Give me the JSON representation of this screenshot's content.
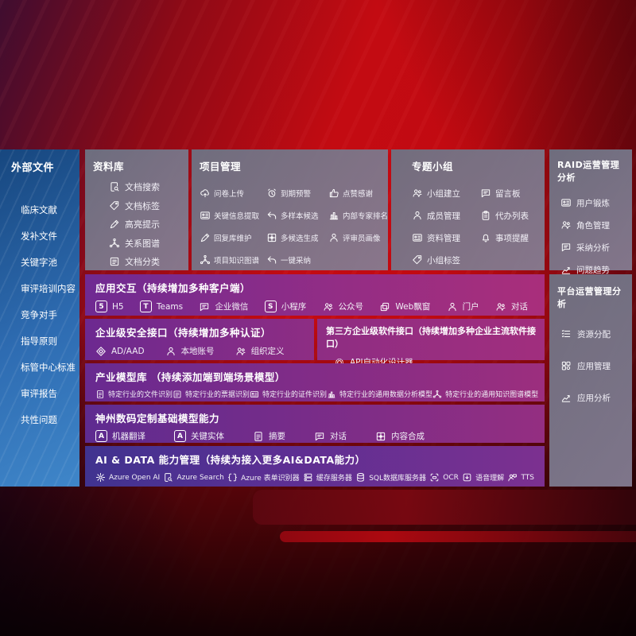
{
  "colors": {
    "background_red": "#c30b12",
    "sidebar_blue_top": "#17477f",
    "sidebar_blue_bottom": "#3f86c9",
    "panel_gray": "#767e92",
    "purple_left": "#6e2a91",
    "magenta_right": "#a62e7c",
    "indigo_left": "#403390",
    "text": "#ffffff"
  },
  "sidebar": {
    "title": "外部文件",
    "items": [
      "临床文献",
      "发补文件",
      "关键字池",
      "审评培训内容",
      "竞争对手",
      "指导原则",
      "标管中心标准",
      "审评报告",
      "共性问题"
    ]
  },
  "panels": {
    "library": {
      "title": "资料库",
      "items": [
        {
          "label": "文档搜索",
          "icon": "doc-search"
        },
        {
          "label": "文档标签",
          "icon": "doc-tag"
        },
        {
          "label": "高亮提示",
          "icon": "highlight"
        },
        {
          "label": "关系图谱",
          "icon": "relation-graph"
        },
        {
          "label": "文档分类",
          "icon": "doc-classify"
        }
      ]
    },
    "project": {
      "title": "项目管理",
      "items": [
        {
          "label": "问卷上传",
          "icon": "upload-cloud"
        },
        {
          "label": "到期预警",
          "icon": "alarm"
        },
        {
          "label": "点赞感谢",
          "icon": "thumbs-up"
        },
        {
          "label": "关键信息提取",
          "icon": "info-extract"
        },
        {
          "label": "多样本候选",
          "icon": "multi-sample"
        },
        {
          "label": "内部专家排名",
          "icon": "expert-rank"
        },
        {
          "label": "回复库维护",
          "icon": "reply-maintain"
        },
        {
          "label": "多候选生成",
          "icon": "multi-generate"
        },
        {
          "label": "评审员画像",
          "icon": "reviewer-portrait"
        },
        {
          "label": "项目知识图谱",
          "icon": "knowledge-graph"
        },
        {
          "label": "一键采纳",
          "icon": "one-click-adopt"
        }
      ]
    },
    "group": {
      "title": "专题小组",
      "items": [
        {
          "label": "小组建立",
          "icon": "group-create"
        },
        {
          "label": "留言板",
          "icon": "message-board"
        },
        {
          "label": "成员管理",
          "icon": "member-manage"
        },
        {
          "label": "代办列表",
          "icon": "todo-list"
        },
        {
          "label": "资料管理",
          "icon": "material-manage"
        },
        {
          "label": "事项提醒",
          "icon": "reminder"
        },
        {
          "label": "小组标签",
          "icon": "group-tag"
        }
      ]
    },
    "raid": {
      "title": "RAID运营管理分析",
      "items": [
        {
          "label": "用户锻炼",
          "icon": "user-card"
        },
        {
          "label": "角色管理",
          "icon": "role-manage"
        },
        {
          "label": "采纳分析",
          "icon": "adopt-analysis"
        },
        {
          "label": "问题趋势",
          "icon": "issue-trend"
        }
      ]
    },
    "platform": {
      "title": "平台运营管理分析",
      "items": [
        {
          "label": "资源分配",
          "icon": "resource-alloc"
        },
        {
          "label": "应用管理",
          "icon": "app-manage"
        },
        {
          "label": "应用分析",
          "icon": "app-analysis"
        }
      ]
    },
    "interaction": {
      "title": "应用交互（持续增加多种客户端）",
      "items": [
        {
          "label": "H5",
          "icon": "h5"
        },
        {
          "label": "Teams",
          "icon": "teams"
        },
        {
          "label": "企业微信",
          "icon": "wechat-work"
        },
        {
          "label": "小程序",
          "icon": "mini-program"
        },
        {
          "label": "公众号",
          "icon": "official-account"
        },
        {
          "label": "Web飘窗",
          "icon": "web-popup"
        },
        {
          "label": "门户",
          "icon": "portal"
        },
        {
          "label": "对话",
          "icon": "dialog"
        }
      ]
    },
    "security": {
      "title": "企业级安全接口（持续增加多种认证）",
      "items": [
        {
          "label": "AD/AAD",
          "icon": "ad-aad"
        },
        {
          "label": "本地账号",
          "icon": "local-account"
        },
        {
          "label": "组织定义",
          "icon": "org-define"
        }
      ]
    },
    "thirdparty": {
      "title": "第三方企业级软件接口（持续增加多种企业主流软件接口）",
      "items": [
        {
          "label": "API自动化设计器",
          "icon": "api-designer"
        }
      ]
    },
    "industry": {
      "title": "产业模型库 （持续添加端到端场景模型）",
      "items": [
        {
          "label": "特定行业的文件识别",
          "icon": "file-recognition"
        },
        {
          "label": "特定行业的票据识别",
          "icon": "invoice-recognition"
        },
        {
          "label": "特定行业的证件识别",
          "icon": "id-recognition"
        },
        {
          "label": "特定行业的通用数据分析模型",
          "icon": "data-analysis-model"
        },
        {
          "label": "特定行业的通用知识图谱模型",
          "icon": "knowledge-graph-model"
        }
      ]
    },
    "base": {
      "title": "神州数码定制基础模型能力",
      "items": [
        {
          "label": "机器翻译",
          "icon": "translate"
        },
        {
          "label": "关键实体",
          "icon": "key-entity"
        },
        {
          "label": "摘要",
          "icon": "summary"
        },
        {
          "label": "对话",
          "icon": "chat"
        },
        {
          "label": "内容合成",
          "icon": "content-synthesis"
        }
      ]
    },
    "aidata": {
      "title": "AI & DATA 能力管理（持续为接入更多AI&DATA能力）",
      "items": [
        {
          "label": "Azure Open AI",
          "icon": "openai"
        },
        {
          "label": "Azure Search",
          "icon": "azure-search"
        },
        {
          "label": "Azure 表单识别器",
          "icon": "form-recognizer"
        },
        {
          "label": "缓存服务器",
          "icon": "cache-server"
        },
        {
          "label": "SQL数据库服务器",
          "icon": "sql-server"
        },
        {
          "label": "OCR",
          "icon": "ocr"
        },
        {
          "label": "语音理解",
          "icon": "speech-understanding"
        },
        {
          "label": "TTS",
          "icon": "tts"
        }
      ]
    }
  }
}
